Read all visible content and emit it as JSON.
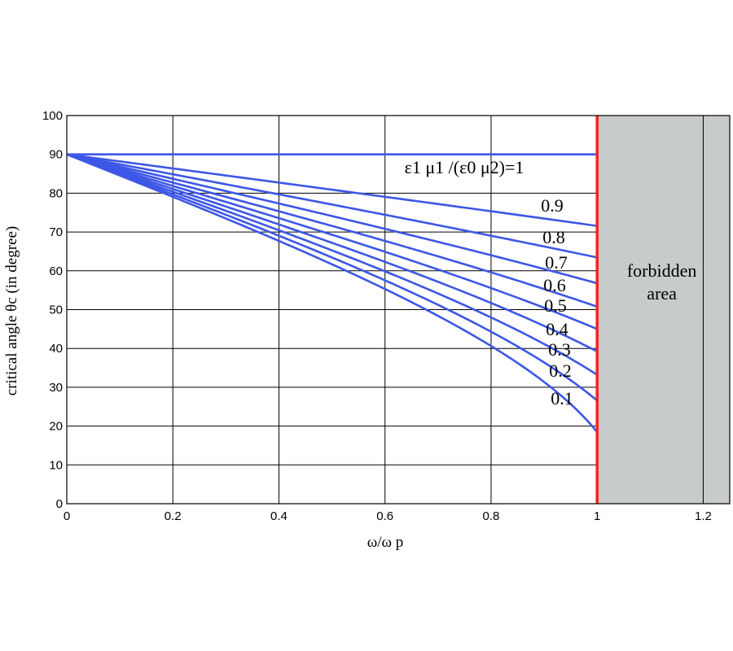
{
  "chart_data": {
    "type": "line",
    "title": "",
    "xlabel": "ω/ω p",
    "ylabel": "critical angle θc (in degree)",
    "xlim": [
      0,
      1.25
    ],
    "ylim": [
      0,
      100
    ],
    "xticks": [
      "0",
      "0.2",
      "0.4",
      "0.6",
      "0.8",
      "1",
      "1.2"
    ],
    "xtick_values": [
      0,
      0.2,
      0.4,
      0.6,
      0.8,
      1,
      1.2
    ],
    "yticks": [
      "0",
      "10",
      "20",
      "30",
      "40",
      "50",
      "60",
      "70",
      "80",
      "90",
      "100"
    ],
    "ytick_values": [
      0,
      10,
      20,
      30,
      40,
      50,
      60,
      70,
      80,
      90,
      100
    ],
    "grid": true,
    "curve_color": "#3d57e6",
    "boundary": {
      "x": 1,
      "color": "#ff2020"
    },
    "forbidden_region": {
      "x_start": 1,
      "x_end": 1.25,
      "label_lines": [
        "forbidden",
        "area"
      ],
      "color": "#c8cbcb"
    },
    "series": [
      {
        "label": "ε1 μ1 /(ε0 μ2)=1",
        "k": 1.0
      },
      {
        "label": "0.9",
        "k": 0.9
      },
      {
        "label": "0.8",
        "k": 0.8
      },
      {
        "label": "0.7",
        "k": 0.7
      },
      {
        "label": "0.6",
        "k": 0.6
      },
      {
        "label": "0.5",
        "k": 0.5
      },
      {
        "label": "0.4",
        "k": 0.4
      },
      {
        "label": "0.3",
        "k": 0.3
      },
      {
        "label": "0.2",
        "k": 0.2
      },
      {
        "label": "0.1",
        "k": 0.1
      }
    ],
    "x_range": [
      0,
      1
    ]
  }
}
